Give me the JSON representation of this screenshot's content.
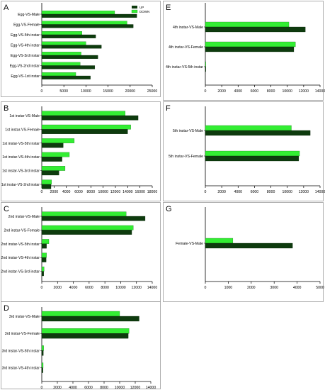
{
  "colors": {
    "up": "#0e3b0e",
    "down": "#33ee33",
    "frame": "#999999",
    "axis": "#000000"
  },
  "legend": {
    "up": "UP",
    "down": "DOWN"
  },
  "chart_data": [
    {
      "type": "bar",
      "orientation": "horizontal",
      "panel": "A",
      "categories": [
        "Egg-VS-Male",
        "Egg-VS-Female",
        "Egg-VS-5th instar",
        "Egg-VS-4th instar",
        "Egg-VS-3rd instar",
        "Egg-VS-2nd instar",
        "Egg-VS-1st instar"
      ],
      "series": [
        {
          "name": "UP",
          "values": [
            21500,
            20700,
            12200,
            13500,
            12700,
            12000,
            11000
          ]
        },
        {
          "name": "DOWN",
          "values": [
            16500,
            19300,
            9100,
            10000,
            8900,
            8700,
            7700
          ]
        }
      ],
      "xlim": [
        0,
        25000
      ],
      "xticks": [
        0,
        5000,
        10000,
        15000,
        20000,
        25000
      ],
      "legend_position": "top-right"
    },
    {
      "type": "bar",
      "orientation": "horizontal",
      "panel": "B",
      "categories": [
        "1st instar-VS-Male",
        "1st instar-VS-Female",
        "1st instar-VS-5th instar",
        "1st instar-VS-4th instar",
        "1st instar-VS-3rd instar",
        "1st instar-VS-2nd instar"
      ],
      "series": [
        {
          "name": "UP",
          "values": [
            15700,
            14000,
            3500,
            3300,
            2800,
            1500
          ]
        },
        {
          "name": "DOWN",
          "values": [
            13600,
            14500,
            5300,
            4500,
            3800,
            1600
          ]
        }
      ],
      "xlim": [
        0,
        18000
      ],
      "xticks": [
        0,
        2000,
        4000,
        6000,
        8000,
        10000,
        12000,
        14000,
        16000,
        18000
      ]
    },
    {
      "type": "bar",
      "orientation": "horizontal",
      "panel": "C",
      "categories": [
        "2nd instar-VS-Male",
        "2nd instar-VS-Female",
        "2nd instar-VS-5th instar",
        "2nd instar-VS-4th instar",
        "2nd instar-VS-3rd instar"
      ],
      "series": [
        {
          "name": "UP",
          "values": [
            13100,
            11400,
            600,
            550,
            250
          ]
        },
        {
          "name": "DOWN",
          "values": [
            10700,
            11600,
            900,
            600,
            300
          ]
        }
      ],
      "xlim": [
        0,
        14000
      ],
      "xticks": [
        0,
        2000,
        4000,
        6000,
        8000,
        10000,
        12000,
        14000
      ]
    },
    {
      "type": "bar",
      "orientation": "horizontal",
      "panel": "D",
      "categories": [
        "3rd instar-VS-Male",
        "3rd instar-VS-Female",
        "3rd instar-VS-5th instar",
        "3rd instar-VS-4th instar"
      ],
      "series": [
        {
          "name": "UP",
          "values": [
            12500,
            11100,
            200,
            150
          ]
        },
        {
          "name": "DOWN",
          "values": [
            10000,
            11200,
            250,
            180
          ]
        }
      ],
      "xlim": [
        0,
        14000
      ],
      "xticks": [
        0,
        2000,
        4000,
        6000,
        8000,
        10000,
        12000,
        14000
      ]
    },
    {
      "type": "bar",
      "orientation": "horizontal",
      "panel": "E",
      "categories": [
        "4th instar-VS-Male",
        "4th instar-VS-Female",
        "4th instar-VS-5th instar"
      ],
      "series": [
        {
          "name": "UP",
          "values": [
            12200,
            10800,
            60
          ]
        },
        {
          "name": "DOWN",
          "values": [
            10200,
            11000,
            50
          ]
        }
      ],
      "xlim": [
        0,
        14000
      ],
      "xticks": [
        0,
        2000,
        4000,
        6000,
        8000,
        10000,
        12000,
        14000
      ]
    },
    {
      "type": "bar",
      "orientation": "horizontal",
      "panel": "F",
      "categories": [
        "5th instar-VS-Male",
        "5th instar-VS-Female"
      ],
      "series": [
        {
          "name": "UP",
          "values": [
            12800,
            11400
          ]
        },
        {
          "name": "DOWN",
          "values": [
            10500,
            11500
          ]
        }
      ],
      "xlim": [
        0,
        14000
      ],
      "xticks": [
        0,
        2000,
        4000,
        6000,
        8000,
        10000,
        12000,
        14000
      ]
    },
    {
      "type": "bar",
      "orientation": "horizontal",
      "panel": "G",
      "categories": [
        "Female-VS-Male"
      ],
      "series": [
        {
          "name": "UP",
          "values": [
            3800
          ]
        },
        {
          "name": "DOWN",
          "values": [
            1200
          ]
        }
      ],
      "xlim": [
        0,
        5000
      ],
      "xticks": [
        0,
        1000,
        2000,
        3000,
        4000,
        5000
      ]
    }
  ]
}
